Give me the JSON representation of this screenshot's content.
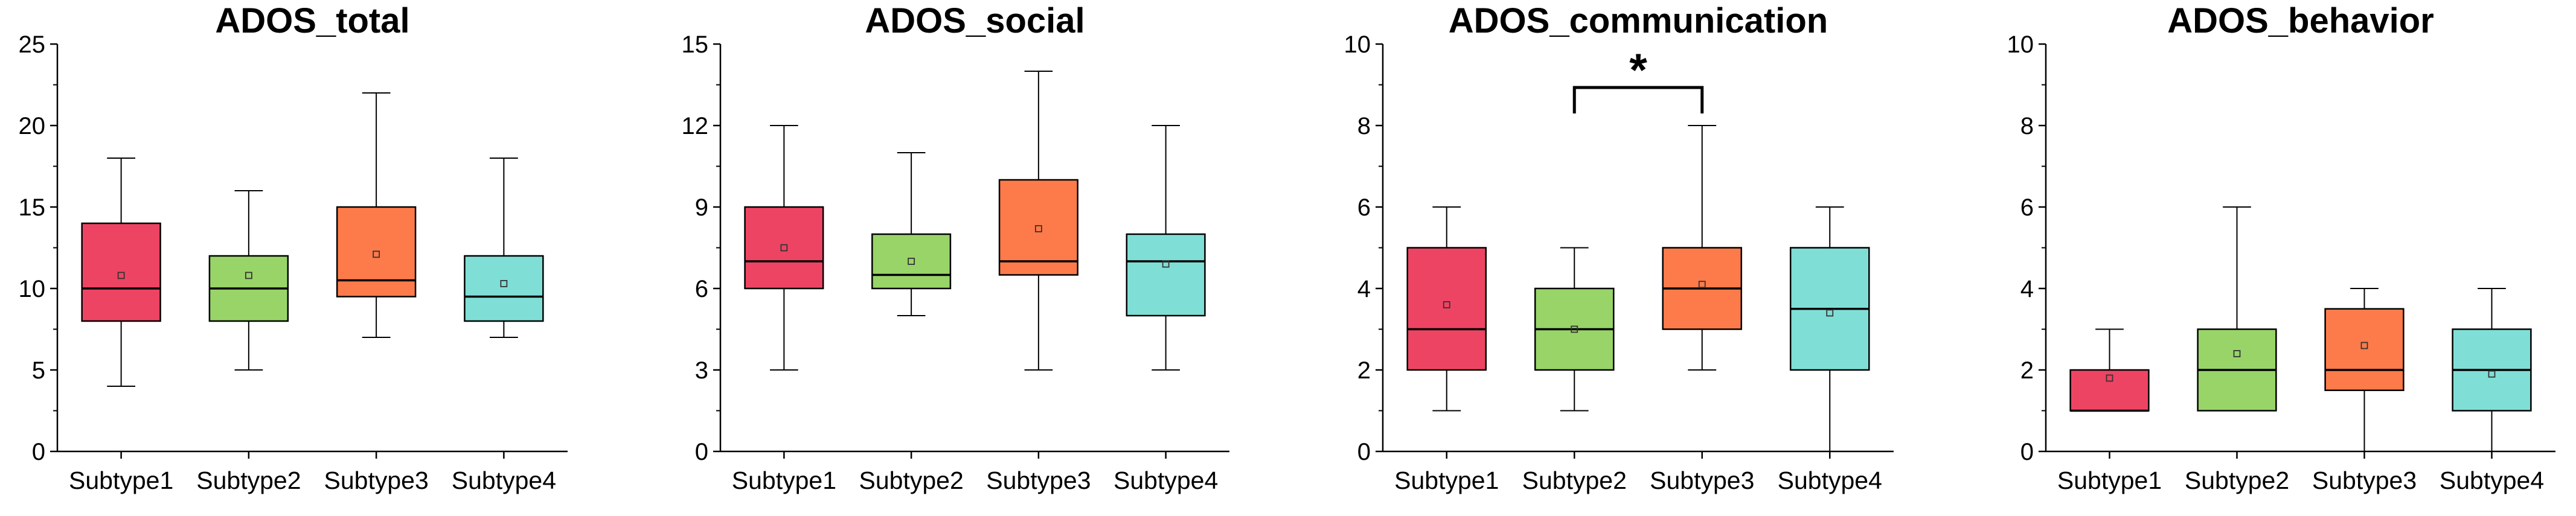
{
  "colors": [
    "#ee4463",
    "#98d468",
    "#fd7b4a",
    "#7fdfd6"
  ],
  "chart_data": [
    {
      "type": "box",
      "title": "ADOS_total",
      "categories": [
        "Subtype1",
        "Subtype2",
        "Subtype3",
        "Subtype4"
      ],
      "ylim": [
        0,
        25
      ],
      "yticks": [
        "0",
        "5",
        "10",
        "15",
        "20",
        "25"
      ],
      "boxes": [
        {
          "whisker_low": 4,
          "q1": 8,
          "median": 10,
          "q3": 14,
          "whisker_high": 18,
          "mean": 10.8
        },
        {
          "whisker_low": 5,
          "q1": 8,
          "median": 10,
          "q3": 12,
          "whisker_high": 16,
          "mean": 10.8
        },
        {
          "whisker_low": 7,
          "q1": 9.5,
          "median": 10.5,
          "q3": 15,
          "whisker_high": 22,
          "mean": 12.1
        },
        {
          "whisker_low": 7,
          "q1": 8,
          "median": 9.5,
          "q3": 12,
          "whisker_high": 18,
          "mean": 10.3
        }
      ]
    },
    {
      "type": "box",
      "title": "ADOS_social",
      "categories": [
        "Subtype1",
        "Subtype2",
        "Subtype3",
        "Subtype4"
      ],
      "ylim": [
        0,
        15
      ],
      "yticks": [
        "0",
        "3",
        "6",
        "9",
        "12",
        "15"
      ],
      "boxes": [
        {
          "whisker_low": 3,
          "q1": 6,
          "median": 7,
          "q3": 9,
          "whisker_high": 12,
          "mean": 7.5
        },
        {
          "whisker_low": 5,
          "q1": 6,
          "median": 6.5,
          "q3": 8,
          "whisker_high": 11,
          "mean": 7.0
        },
        {
          "whisker_low": 3,
          "q1": 6.5,
          "median": 7,
          "q3": 10,
          "whisker_high": 14,
          "mean": 8.2
        },
        {
          "whisker_low": 3,
          "q1": 5,
          "median": 7,
          "q3": 8,
          "whisker_high": 12,
          "mean": 6.9
        }
      ]
    },
    {
      "type": "box",
      "title": "ADOS_communication",
      "categories": [
        "Subtype1",
        "Subtype2",
        "Subtype3",
        "Subtype4"
      ],
      "ylim": [
        0,
        10
      ],
      "yticks": [
        "0",
        "2",
        "4",
        "6",
        "8",
        "10"
      ],
      "boxes": [
        {
          "whisker_low": 1,
          "q1": 2,
          "median": 3,
          "q3": 5,
          "whisker_high": 6,
          "mean": 3.6
        },
        {
          "whisker_low": 1,
          "q1": 2,
          "median": 3,
          "q3": 4,
          "whisker_high": 5,
          "mean": 3.0
        },
        {
          "whisker_low": 2,
          "q1": 3,
          "median": 4,
          "q3": 5,
          "whisker_high": 8,
          "mean": 4.1
        },
        {
          "whisker_low": 0,
          "q1": 2,
          "median": 3.5,
          "q3": 5,
          "whisker_high": 6,
          "mean": 3.4
        }
      ],
      "significance": {
        "from": 1,
        "to": 2,
        "label": "*"
      }
    },
    {
      "type": "box",
      "title": "ADOS_behavior",
      "categories": [
        "Subtype1",
        "Subtype2",
        "Subtype3",
        "Subtype4"
      ],
      "ylim": [
        0,
        10
      ],
      "yticks": [
        "0",
        "2",
        "4",
        "6",
        "8",
        "10"
      ],
      "boxes": [
        {
          "whisker_low": 1,
          "q1": 1,
          "median": 1,
          "q3": 2,
          "whisker_high": 3,
          "mean": 1.8
        },
        {
          "whisker_low": 1,
          "q1": 1,
          "median": 2,
          "q3": 3,
          "whisker_high": 6,
          "mean": 2.4
        },
        {
          "whisker_low": 0,
          "q1": 1.5,
          "median": 2,
          "q3": 3.5,
          "whisker_high": 4,
          "mean": 2.6
        },
        {
          "whisker_low": 0,
          "q1": 1,
          "median": 2,
          "q3": 3,
          "whisker_high": 4,
          "mean": 1.9
        }
      ]
    }
  ]
}
